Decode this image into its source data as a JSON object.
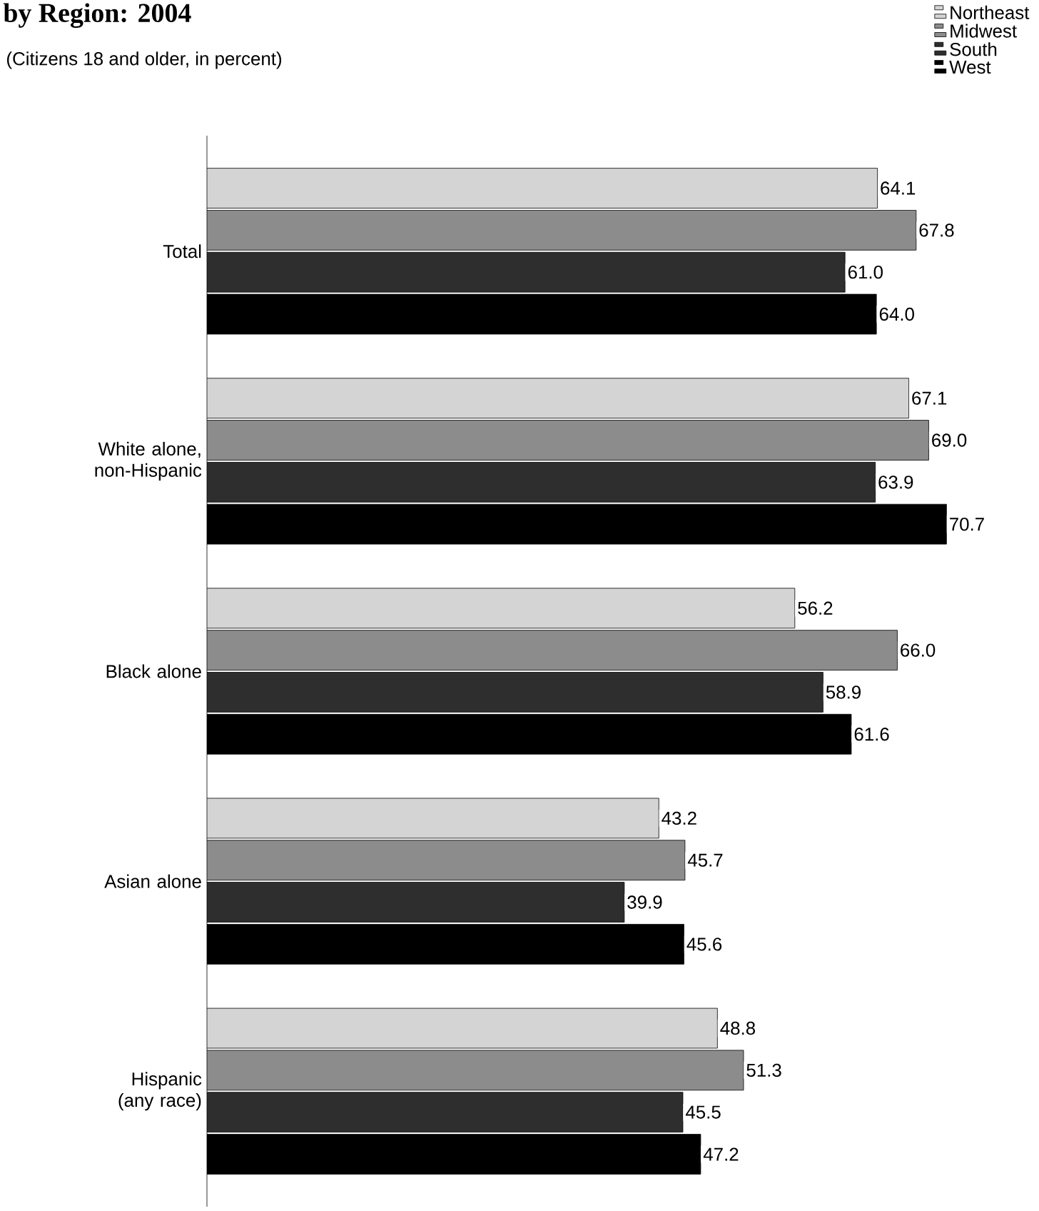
{
  "chart_data": {
    "type": "bar",
    "orientation": "horizontal",
    "title": "by Region: 2004",
    "subtitle": "(Citizens 18 and older, in percent)",
    "categories": [
      "Total",
      "White alone, non-Hispanic",
      "Black alone",
      "Asian alone",
      "Hispanic (any race)"
    ],
    "series": [
      {
        "name": "Northeast",
        "color": "#d4d4d4",
        "values": [
          64.1,
          67.1,
          56.2,
          43.2,
          48.8
        ],
        "value_labels": [
          "64.1",
          "67.1",
          "56.2",
          "43.2",
          "48.8"
        ]
      },
      {
        "name": "Midwest",
        "color": "#8c8c8c",
        "values": [
          67.8,
          69.0,
          66.0,
          45.7,
          51.3
        ],
        "value_labels": [
          "67.8",
          "69.0",
          "66.0",
          "45.7",
          "51.3"
        ]
      },
      {
        "name": "South",
        "color": "#2e2e2e",
        "values": [
          61.0,
          63.9,
          58.9,
          39.9,
          45.5
        ],
        "value_labels": [
          "61.0",
          "63.9",
          "58.9",
          "39.9",
          "45.5"
        ]
      },
      {
        "name": "West",
        "color": "#000000",
        "values": [
          64.0,
          70.7,
          61.6,
          45.6,
          47.2
        ],
        "value_labels": [
          "64.0",
          "70.7",
          "61.6",
          "45.6",
          "47.2"
        ]
      }
    ],
    "legend": "top right"
  }
}
